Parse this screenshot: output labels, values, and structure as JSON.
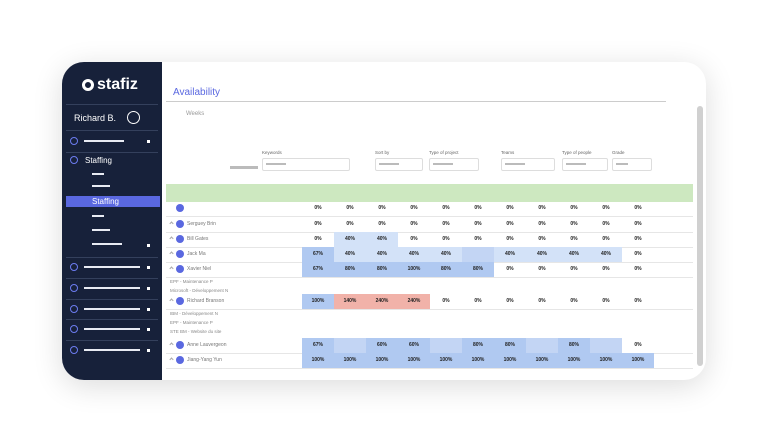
{
  "sidebar": {
    "brand": "stafiz",
    "user": "Richard B.",
    "menu": "Staffing",
    "active": "Staffing"
  },
  "header": {
    "title": "Availability",
    "toggle": "Weeks"
  },
  "filters": [
    "Keywords",
    "Sort by",
    "Type of project",
    "Teams",
    "Type of people",
    "Grade"
  ],
  "table": {
    "rows": [
      {
        "cells": [
          "0%",
          "0%",
          "0%",
          "0%",
          "0%",
          "0%",
          "0%",
          "0%",
          "0%",
          "0%",
          "0%"
        ]
      },
      {
        "name": "Serguey Brin",
        "cells": [
          "0%",
          "0%",
          "0%",
          "0%",
          "0%",
          "0%",
          "0%",
          "0%",
          "0%",
          "0%",
          "0%"
        ]
      },
      {
        "name": "Bill Gates",
        "cells": [
          "0%",
          "40%",
          "40%",
          "0%",
          "0%",
          "0%",
          "0%",
          "0%",
          "0%",
          "0%",
          "0%"
        ]
      },
      {
        "name": "Jack Ma",
        "cells": [
          "67%",
          "40%",
          "40%",
          "40%",
          "40%",
          null,
          "40%",
          "40%",
          "40%",
          "40%",
          "0%"
        ]
      },
      {
        "name": "Xavier Niel",
        "cells": [
          "67%",
          "80%",
          "80%",
          "100%",
          "80%",
          "80%",
          "0%",
          "0%",
          "0%",
          "0%",
          "0%"
        ],
        "details": [
          "EPF - Maintenance P",
          "Microsoft - Développement N"
        ]
      },
      {
        "name": "Richard Branson",
        "cells": [
          "100%",
          "140%",
          "240%",
          "240%",
          "0%",
          "0%",
          "0%",
          "0%",
          "0%",
          "0%",
          "0%"
        ],
        "details": [
          "IBM - Développement N",
          "EPF - Maintenance P",
          "STE BM - Website du site"
        ]
      },
      {
        "name": "Anne Lauvergeon",
        "cells": [
          "67%",
          null,
          "60%",
          "60%",
          null,
          "80%",
          "80%",
          null,
          "80%",
          null,
          "0%"
        ]
      },
      {
        "name": "Jiang-Yang Yun",
        "cells": [
          "100%",
          "100%",
          "100%",
          "100%",
          "100%",
          "100%",
          "100%",
          "100%",
          "100%",
          "100%",
          "100%"
        ]
      }
    ]
  }
}
